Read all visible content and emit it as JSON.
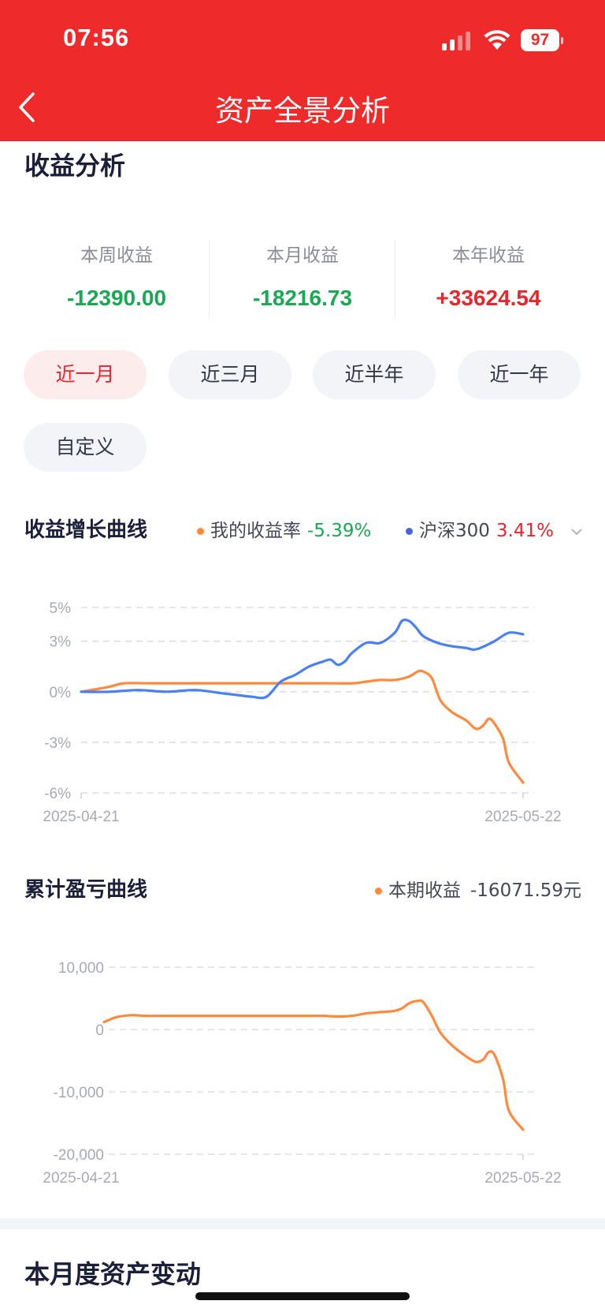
{
  "status_bar": {
    "time": "07:56",
    "battery": "97"
  },
  "nav": {
    "title": "资产全景分析"
  },
  "income_analysis": {
    "title": "收益分析",
    "stats": [
      {
        "label": "本周收益",
        "value": "-12390.00",
        "color": "#19a853"
      },
      {
        "label": "本月收益",
        "value": "-18216.73",
        "color": "#19a853"
      },
      {
        "label": "本年收益",
        "value": "+33624.54",
        "color": "#e8262c"
      }
    ],
    "periods": [
      "近一月",
      "近三月",
      "近半年",
      "近一年",
      "自定义"
    ],
    "active_period": "近一月"
  },
  "growth_chart": {
    "title": "收益增长曲线",
    "legend": {
      "mine_label": "我的收益率",
      "mine_value": "-5.39%",
      "mine_value_color": "#19a853",
      "index_label": "沪深300",
      "index_value": "3.41%",
      "index_value_color": "#e8262c"
    }
  },
  "pnl_chart": {
    "title": "累计盈亏曲线",
    "legend": {
      "label": "本期收益",
      "value": "-16071.59元"
    }
  },
  "asset_change": {
    "title": "本月度资产变动"
  },
  "chart_data": [
    {
      "type": "line",
      "title": "收益增长曲线",
      "y_ticks": [
        "5%",
        "3%",
        "0%",
        "-3%",
        "-6%"
      ],
      "y_tick_values": [
        5,
        3,
        0,
        -3,
        -6
      ],
      "ylim": [
        -6,
        5
      ],
      "x_labels": [
        "2025-04-21",
        "2025-05-22"
      ],
      "x_range": [
        0,
        31
      ],
      "grid": true,
      "series": [
        {
          "name": "我的收益率",
          "color": "#ff8a3d",
          "x": [
            0,
            2,
            3,
            5,
            7,
            9,
            11,
            13,
            15,
            17,
            19,
            20,
            21,
            22,
            23,
            23.6,
            24,
            24.6,
            25.2,
            26,
            27,
            27.7,
            28.2,
            28.6,
            29,
            29.6,
            30,
            31
          ],
          "values": [
            0,
            0.3,
            0.5,
            0.5,
            0.5,
            0.5,
            0.5,
            0.5,
            0.5,
            0.5,
            0.5,
            0.6,
            0.7,
            0.7,
            0.9,
            1.2,
            1.2,
            0.8,
            -0.5,
            -1.2,
            -1.7,
            -2.2,
            -2.0,
            -1.6,
            -1.9,
            -2.8,
            -4.2,
            -5.39
          ]
        },
        {
          "name": "沪深300",
          "color": "#4a80f5",
          "x": [
            0,
            2,
            4,
            6,
            8,
            10,
            11,
            12,
            13,
            14,
            15,
            16,
            17,
            17.5,
            18,
            18.5,
            19,
            20,
            21,
            22,
            22.5,
            23,
            23.5,
            24,
            25,
            26,
            27,
            27.5,
            28,
            29,
            30,
            31
          ],
          "values": [
            0,
            0,
            0.1,
            0,
            0.1,
            -0.1,
            -0.2,
            -0.3,
            -0.3,
            0.6,
            1.0,
            1.5,
            1.8,
            1.9,
            1.6,
            1.8,
            2.3,
            2.9,
            2.9,
            3.5,
            4.2,
            4.2,
            3.8,
            3.3,
            2.9,
            2.7,
            2.6,
            2.5,
            2.6,
            3.0,
            3.5,
            3.41
          ]
        }
      ]
    },
    {
      "type": "line",
      "title": "累计盈亏曲线",
      "y_ticks": [
        "10,000",
        "0",
        "-10,000",
        "-20,000"
      ],
      "y_tick_values": [
        10000,
        0,
        -10000,
        -20000
      ],
      "ylim": [
        -20000,
        10000
      ],
      "x_labels": [
        "2025-04-21",
        "2025-05-22"
      ],
      "x_range": [
        0,
        31
      ],
      "grid": true,
      "series": [
        {
          "name": "本期收益",
          "color": "#ff8a3d",
          "x": [
            1.6,
            2.5,
            3.5,
            4.5,
            6,
            8,
            10,
            12,
            14,
            16,
            17,
            18,
            19,
            20,
            21,
            22,
            22.5,
            23,
            23.6,
            24,
            24.6,
            25.2,
            26,
            27,
            27.7,
            28.2,
            28.6,
            29,
            29.6,
            30,
            31
          ],
          "values": [
            1200,
            2000,
            2300,
            2200,
            2200,
            2200,
            2200,
            2200,
            2200,
            2200,
            2200,
            2100,
            2200,
            2600,
            2800,
            3000,
            3400,
            4200,
            4600,
            4400,
            2200,
            -500,
            -2500,
            -4300,
            -5200,
            -4800,
            -3600,
            -4100,
            -8000,
            -13000,
            -16071.59
          ]
        }
      ]
    }
  ]
}
